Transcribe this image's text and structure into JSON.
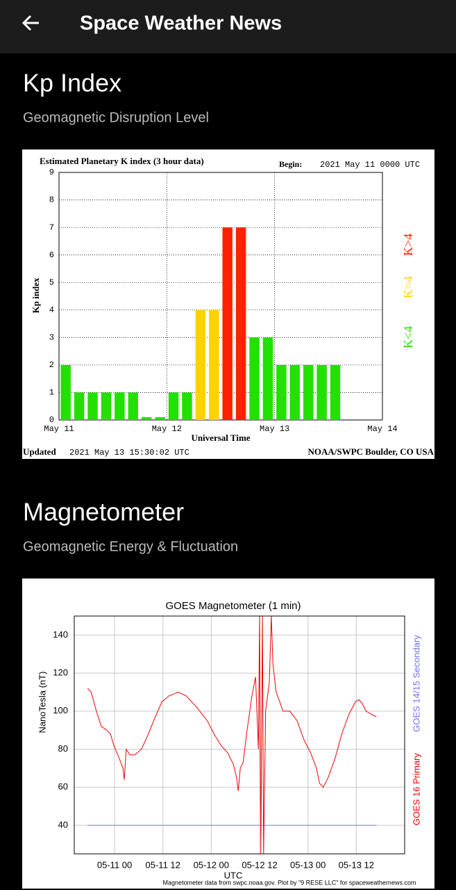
{
  "header": {
    "title": "Space Weather News"
  },
  "sections": [
    {
      "title": "Kp Index",
      "subtitle": "Geomagnetic Disruption Level"
    },
    {
      "title": "Magnetometer",
      "subtitle": "Geomagnetic Energy & Fluctuation"
    }
  ],
  "chart_data": [
    {
      "type": "bar",
      "title": "Estimated Planetary K index (3 hour data)",
      "begin_label": "Begin:",
      "begin": "2021 May 11 0000 UTC",
      "y_label": "Kp index",
      "x_label": "Universal Time",
      "updated_label": "Updated",
      "updated": "2021 May 13 15:30:02 UTC",
      "source": "NOAA/SWPC Boulder, CO USA",
      "x": [
        0,
        3,
        6,
        9,
        12,
        15,
        18,
        21,
        24,
        27,
        30,
        33,
        36,
        39,
        42,
        45,
        48,
        51,
        54,
        57,
        60
      ],
      "values": [
        2,
        1,
        1,
        1,
        1,
        1,
        0.1,
        0.1,
        1,
        1,
        4,
        4,
        7,
        7,
        3,
        3,
        2,
        2,
        2,
        2,
        2
      ],
      "threshold": 4,
      "legend": [
        {
          "label": "K<4",
          "color": "#22e000"
        },
        {
          "label": "K=4",
          "color": "#ffd200"
        },
        {
          "label": "K>4",
          "color": "#ff2200"
        }
      ],
      "xlim": [
        0,
        72
      ],
      "xticks": [
        {
          "value": 0,
          "label": "May 11"
        },
        {
          "value": 24,
          "label": "May 12"
        },
        {
          "value": 48,
          "label": "May 13"
        },
        {
          "value": 72,
          "label": "May 14"
        }
      ],
      "ylim": [
        0,
        9
      ],
      "yticks": [
        0,
        1,
        2,
        3,
        4,
        5,
        6,
        7,
        8,
        9
      ],
      "grid": true
    },
    {
      "type": "line",
      "title": "GOES Magnetometer (1 min)",
      "y_label": "NanoTesla (nT)",
      "x_label": "UTC",
      "footer": "Magnetometer data from swpc.noaa.gov. Plot by \"9 RESE LLC\" for spaceweathernews.com",
      "series": [
        {
          "name": "GOES 14/15 Secondary",
          "color": "#7070ff",
          "x": [
            -6.7,
            65.0
          ],
          "values": [
            40,
            40
          ]
        },
        {
          "name": "GOES 16 Primary",
          "color": "#ee0000",
          "x": [
            -6.7,
            -5.8,
            -4.5,
            -3.3,
            -1.9,
            -1.0,
            -0.2,
            1.0,
            2.1,
            2.4,
            2.9,
            3.8,
            5.0,
            6.7,
            8.4,
            10.1,
            11.8,
            13.5,
            15.8,
            17.8,
            20.4,
            23.0,
            24.7,
            26.4,
            28.1,
            29.5,
            30.3,
            30.7,
            31.2,
            31.9,
            32.9,
            34.1,
            35.0,
            35.7,
            36.0,
            36.3,
            36.7,
            37.0,
            37.5,
            38.4,
            38.9,
            39.3,
            40.1,
            41.0,
            41.8,
            43.5,
            45.3,
            47.0,
            48.7,
            50.1,
            50.9,
            51.8,
            53.0,
            54.7,
            56.4,
            58.1,
            59.8,
            60.7,
            61.5,
            62.4,
            64.1,
            65.0
          ],
          "values": [
            112,
            110,
            100,
            92,
            90,
            88,
            82,
            76,
            70,
            64,
            80,
            77,
            77,
            80,
            88,
            97,
            105,
            108,
            110,
            108,
            102,
            95,
            88,
            82,
            78,
            72,
            65,
            58,
            70,
            73,
            90,
            108,
            118,
            80,
            150,
            25,
            150,
            25,
            100,
            115,
            150,
            125,
            110,
            105,
            100,
            100,
            95,
            85,
            78,
            70,
            62,
            60,
            65,
            75,
            88,
            98,
            105,
            106,
            104,
            100,
            98,
            97
          ]
        }
      ],
      "xlim": [
        -10,
        72
      ],
      "xticks": [
        {
          "value": 0,
          "label": "05-11 00"
        },
        {
          "value": 12,
          "label": "05-11 12"
        },
        {
          "value": 24,
          "label": "05-12 00"
        },
        {
          "value": 36,
          "label": "05-12 12"
        },
        {
          "value": 48,
          "label": "05-13 00"
        },
        {
          "value": 60,
          "label": "05-13 12"
        }
      ],
      "ylim": [
        25,
        150
      ],
      "yticks": [
        40,
        60,
        80,
        100,
        120,
        140
      ],
      "grid": true
    }
  ]
}
